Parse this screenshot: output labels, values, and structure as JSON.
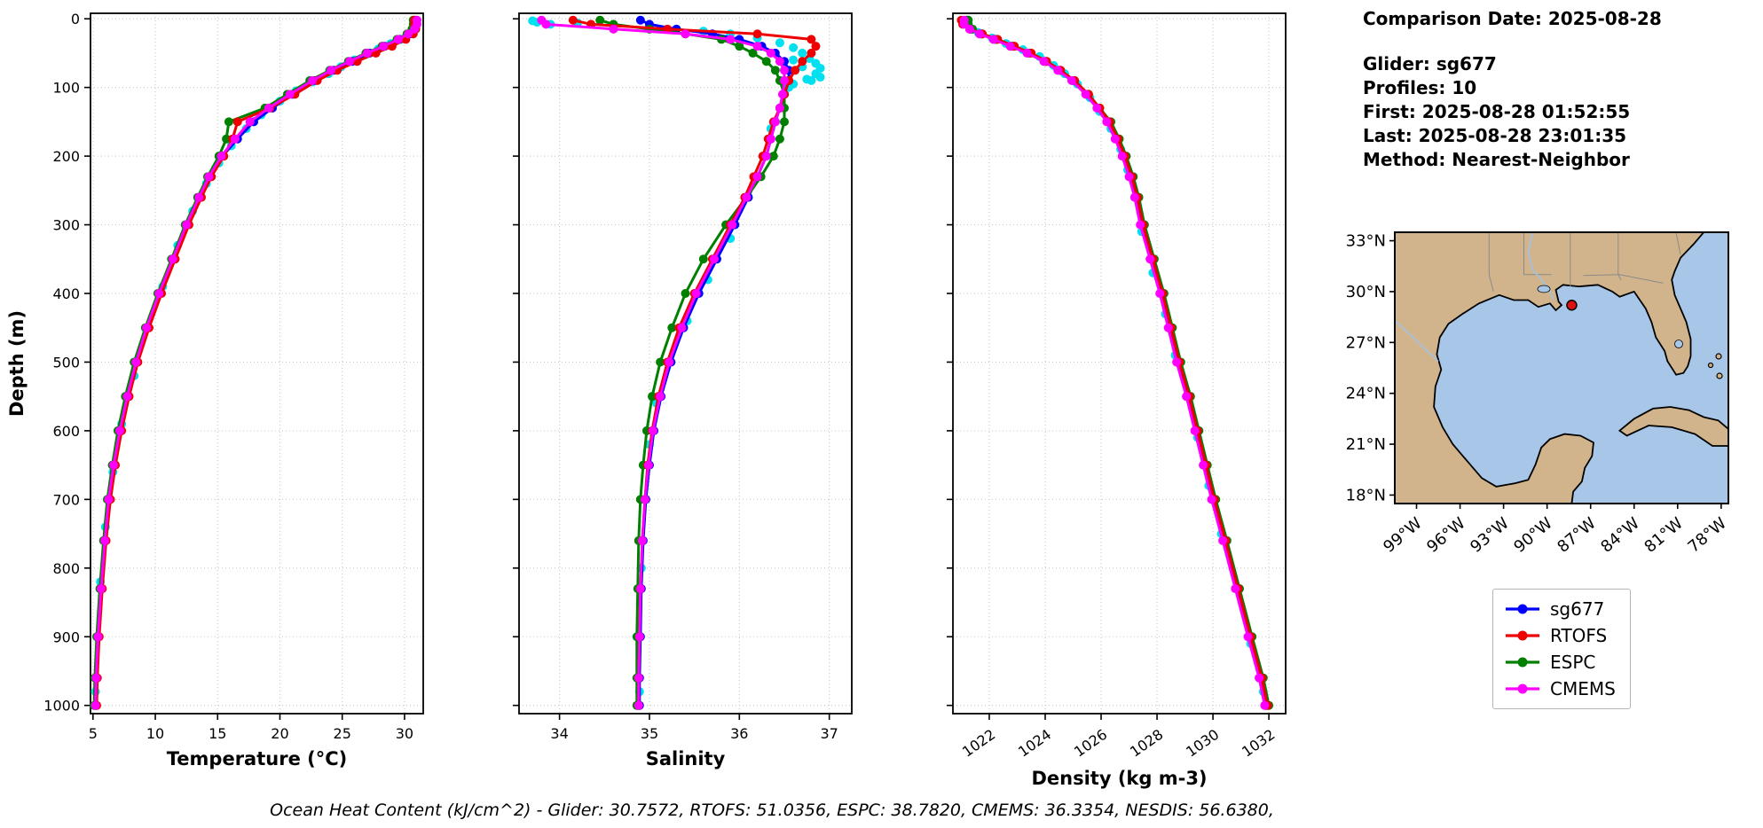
{
  "info_panel": {
    "comparison_date": "Comparison Date: 2025-08-28",
    "glider": "Glider: sg677",
    "profiles": "Profiles: 10",
    "first": "First: 2025-08-28 01:52:55",
    "last": "Last: 2025-08-28 23:01:35",
    "method": "Method: Nearest-Neighbor"
  },
  "caption": "Ocean Heat Content (kJ/cm^2) - Glider: 30.7572,  RTOFS: 51.0356,  ESPC: 38.7820,  CMEMS: 36.3354,  NESDIS: 56.6380,",
  "legend": {
    "entries": [
      {
        "label": "sg677",
        "color": "#0000ff"
      },
      {
        "label": "RTOFS",
        "color": "#ee0000"
      },
      {
        "label": "ESPC",
        "color": "#008000"
      },
      {
        "label": "CMEMS",
        "color": "#ff00ff"
      }
    ]
  },
  "map": {
    "land_color": "#d2b48c",
    "ocean_color": "#a7c6e8",
    "marker": {
      "lon": -88.3,
      "lat": 29.2,
      "color": "#dd1111"
    },
    "lat_labels": [
      "33°N",
      "30°N",
      "27°N",
      "24°N",
      "21°N",
      "18°N"
    ],
    "lat_values": [
      33,
      30,
      27,
      24,
      21,
      18
    ],
    "lon_labels": [
      "99°W",
      "96°W",
      "93°W",
      "90°W",
      "87°W",
      "84°W",
      "81°W",
      "78°W"
    ],
    "lon_values": [
      -99,
      -96,
      -93,
      -90,
      -87,
      -84,
      -81,
      -78
    ]
  },
  "chart_data": [
    {
      "type": "line",
      "xlabel": "Temperature (°C)",
      "ylabel": "Depth (m)",
      "xlim": [
        4.8,
        31.5
      ],
      "ylim": [
        0,
        1000
      ],
      "xticks": [
        5,
        10,
        15,
        20,
        25,
        30
      ],
      "yticks": [
        0,
        100,
        200,
        300,
        400,
        500,
        600,
        700,
        800,
        900,
        1000
      ],
      "grid": true,
      "depths": [
        2,
        8,
        15,
        22,
        30,
        40,
        50,
        62,
        75,
        90,
        110,
        130,
        150,
        175,
        200,
        230,
        260,
        300,
        350,
        400,
        450,
        500,
        550,
        600,
        650,
        700,
        760,
        830,
        900,
        960,
        1000
      ],
      "series": [
        {
          "name": "sg677",
          "color": "#0000ff",
          "values": [
            30.9,
            30.9,
            30.8,
            30.4,
            29.6,
            28.4,
            27.2,
            25.8,
            24.3,
            22.8,
            21.0,
            19.4,
            17.9,
            16.6,
            15.4,
            14.4,
            13.6,
            12.6,
            11.5,
            10.4,
            9.4,
            8.5,
            7.8,
            7.2,
            6.7,
            6.3,
            6.0,
            5.7,
            5.45,
            5.3,
            5.2
          ]
        },
        {
          "name": "RTOFS",
          "color": "#ee0000",
          "values": [
            30.8,
            30.8,
            30.9,
            30.7,
            30.1,
            29.0,
            27.7,
            26.2,
            24.6,
            23.0,
            21.2,
            19.2,
            16.6,
            16.2,
            15.5,
            14.5,
            13.7,
            12.7,
            11.6,
            10.5,
            9.5,
            8.6,
            7.9,
            7.3,
            6.8,
            6.4,
            6.05,
            5.75,
            5.5,
            5.35,
            5.3
          ]
        },
        {
          "name": "ESPC",
          "color": "#008000",
          "values": [
            30.7,
            30.7,
            30.6,
            30.2,
            29.4,
            28.2,
            26.9,
            25.5,
            24.0,
            22.4,
            20.6,
            18.8,
            15.9,
            15.7,
            15.1,
            14.2,
            13.4,
            12.4,
            11.3,
            10.2,
            9.2,
            8.3,
            7.6,
            7.0,
            6.55,
            6.15,
            5.85,
            5.55,
            5.3,
            5.15,
            5.1
          ]
        },
        {
          "name": "CMEMS",
          "color": "#ff00ff",
          "values": [
            31.0,
            31.0,
            30.8,
            30.3,
            29.5,
            28.3,
            27.0,
            25.6,
            24.1,
            22.6,
            20.8,
            19.1,
            17.6,
            16.4,
            15.3,
            14.3,
            13.5,
            12.5,
            11.4,
            10.3,
            9.3,
            8.45,
            7.75,
            7.15,
            6.65,
            6.25,
            5.95,
            5.65,
            5.4,
            5.25,
            5.2
          ]
        }
      ],
      "scatter": {
        "name": "glider-observations",
        "color": "#00e0ee",
        "points": [
          [
            30.9,
            3
          ],
          [
            30.85,
            6
          ],
          [
            30.8,
            10
          ],
          [
            30.75,
            14
          ],
          [
            30.6,
            18
          ],
          [
            30.2,
            24
          ],
          [
            29.7,
            30
          ],
          [
            28.9,
            36
          ],
          [
            27.9,
            44
          ],
          [
            26.9,
            52
          ],
          [
            26.0,
            60
          ],
          [
            24.9,
            70
          ],
          [
            23.9,
            80
          ],
          [
            22.6,
            92
          ],
          [
            21.3,
            105
          ],
          [
            20.0,
            120
          ],
          [
            18.5,
            140
          ],
          [
            17.3,
            160
          ],
          [
            16.1,
            185
          ],
          [
            15.1,
            210
          ],
          [
            14.1,
            240
          ],
          [
            13.0,
            280
          ],
          [
            11.8,
            330
          ],
          [
            10.6,
            390
          ],
          [
            9.4,
            450
          ],
          [
            8.3,
            520
          ],
          [
            7.3,
            590
          ],
          [
            6.6,
            660
          ],
          [
            6.0,
            740
          ],
          [
            5.6,
            820
          ],
          [
            5.35,
            900
          ],
          [
            5.2,
            980
          ]
        ]
      }
    },
    {
      "type": "line",
      "xlabel": "Salinity",
      "ylabel": "",
      "xlim": [
        33.55,
        37.25
      ],
      "ylim": [
        0,
        1000
      ],
      "xticks": [
        34,
        35,
        36,
        37
      ],
      "yticks": [
        0,
        100,
        200,
        300,
        400,
        500,
        600,
        700,
        800,
        900,
        1000
      ],
      "grid": true,
      "depths": [
        2,
        8,
        15,
        22,
        30,
        40,
        50,
        62,
        75,
        90,
        110,
        130,
        150,
        175,
        200,
        230,
        260,
        300,
        350,
        400,
        450,
        500,
        550,
        600,
        650,
        700,
        760,
        830,
        900,
        960,
        1000
      ],
      "series": [
        {
          "name": "sg677",
          "color": "#0000ff",
          "values": [
            34.9,
            35.0,
            35.3,
            35.7,
            36.0,
            36.25,
            36.4,
            36.5,
            36.55,
            36.55,
            36.5,
            36.45,
            36.4,
            36.35,
            36.3,
            36.2,
            36.1,
            35.95,
            35.75,
            35.55,
            35.38,
            35.24,
            35.13,
            35.05,
            35.0,
            34.96,
            34.93,
            34.91,
            34.9,
            34.89,
            34.89
          ]
        },
        {
          "name": "RTOFS",
          "color": "#ee0000",
          "values": [
            34.15,
            34.35,
            35.2,
            36.2,
            36.8,
            36.85,
            36.8,
            36.7,
            36.62,
            36.55,
            36.5,
            36.45,
            36.38,
            36.32,
            36.26,
            36.16,
            36.06,
            35.9,
            35.7,
            35.5,
            35.33,
            35.2,
            35.1,
            35.03,
            34.98,
            34.95,
            34.92,
            34.9,
            34.89,
            34.88,
            34.88
          ]
        },
        {
          "name": "ESPC",
          "color": "#008000",
          "values": [
            34.45,
            34.6,
            35.0,
            35.4,
            35.8,
            36.0,
            36.15,
            36.3,
            36.4,
            36.45,
            36.5,
            36.5,
            36.5,
            36.45,
            36.38,
            36.24,
            36.08,
            35.85,
            35.6,
            35.4,
            35.25,
            35.12,
            35.03,
            34.97,
            34.93,
            34.9,
            34.88,
            34.87,
            34.86,
            34.86,
            34.86
          ]
        },
        {
          "name": "CMEMS",
          "color": "#ff00ff",
          "values": [
            33.8,
            33.85,
            34.6,
            35.4,
            35.9,
            36.2,
            36.35,
            36.45,
            36.5,
            36.5,
            36.48,
            36.45,
            36.4,
            36.35,
            36.3,
            36.2,
            36.08,
            35.92,
            35.72,
            35.52,
            35.36,
            35.22,
            35.12,
            35.04,
            34.99,
            34.95,
            34.92,
            34.9,
            34.89,
            34.88,
            34.88
          ]
        }
      ],
      "scatter": {
        "name": "glider-observations",
        "color": "#00e0ee",
        "points": [
          [
            33.7,
            3
          ],
          [
            33.75,
            5
          ],
          [
            33.9,
            8
          ],
          [
            34.2,
            6
          ],
          [
            34.6,
            10
          ],
          [
            35.0,
            12
          ],
          [
            35.3,
            15
          ],
          [
            35.6,
            18
          ],
          [
            35.9,
            22
          ],
          [
            36.2,
            28
          ],
          [
            36.45,
            35
          ],
          [
            36.6,
            42
          ],
          [
            36.7,
            50
          ],
          [
            36.78,
            58
          ],
          [
            36.85,
            65
          ],
          [
            36.9,
            72
          ],
          [
            36.85,
            80
          ],
          [
            36.75,
            88
          ],
          [
            36.6,
            95
          ],
          [
            36.6,
            60
          ],
          [
            36.7,
            70
          ],
          [
            36.9,
            85
          ],
          [
            36.8,
            90
          ],
          [
            36.55,
            100
          ],
          [
            36.5,
            110
          ],
          [
            36.45,
            130
          ],
          [
            36.35,
            160
          ],
          [
            36.28,
            200
          ],
          [
            36.1,
            260
          ],
          [
            35.9,
            320
          ],
          [
            35.65,
            380
          ],
          [
            35.42,
            440
          ],
          [
            35.22,
            500
          ],
          [
            35.08,
            560
          ],
          [
            35.0,
            620
          ],
          [
            34.95,
            700
          ],
          [
            34.91,
            800
          ],
          [
            34.9,
            900
          ],
          [
            34.89,
            980
          ]
        ]
      }
    },
    {
      "type": "line",
      "xlabel": "Density (kg m-3)",
      "ylabel": "",
      "xlim": [
        1020.7,
        1032.6
      ],
      "ylim": [
        0,
        1000
      ],
      "xticks": [
        1022,
        1024,
        1026,
        1028,
        1030,
        1032
      ],
      "yticks": [
        0,
        100,
        200,
        300,
        400,
        500,
        600,
        700,
        800,
        900,
        1000
      ],
      "grid": true,
      "rotate_xtick_labels": true,
      "depths": [
        2,
        8,
        15,
        22,
        30,
        40,
        50,
        62,
        75,
        90,
        110,
        130,
        150,
        175,
        200,
        230,
        260,
        300,
        350,
        400,
        450,
        500,
        550,
        600,
        650,
        700,
        760,
        830,
        900,
        960,
        1000
      ],
      "series": [
        {
          "name": "sg677",
          "color": "#0000ff",
          "values": [
            1021.2,
            1021.2,
            1021.35,
            1021.7,
            1022.2,
            1022.8,
            1023.4,
            1024.0,
            1024.5,
            1025.0,
            1025.5,
            1025.9,
            1026.25,
            1026.55,
            1026.8,
            1027.05,
            1027.25,
            1027.45,
            1027.8,
            1028.15,
            1028.45,
            1028.75,
            1029.1,
            1029.4,
            1029.7,
            1030.0,
            1030.4,
            1030.85,
            1031.3,
            1031.7,
            1031.9
          ]
        },
        {
          "name": "RTOFS",
          "color": "#ee0000",
          "values": [
            1021.0,
            1021.05,
            1021.3,
            1021.75,
            1022.3,
            1022.9,
            1023.5,
            1024.05,
            1024.55,
            1025.05,
            1025.55,
            1025.95,
            1026.3,
            1026.6,
            1026.85,
            1027.1,
            1027.3,
            1027.5,
            1027.85,
            1028.2,
            1028.5,
            1028.8,
            1029.15,
            1029.45,
            1029.75,
            1030.05,
            1030.45,
            1030.9,
            1031.35,
            1031.75,
            1031.95
          ]
        },
        {
          "name": "ESPC",
          "color": "#008000",
          "values": [
            1021.25,
            1021.25,
            1021.4,
            1021.75,
            1022.25,
            1022.85,
            1023.45,
            1024.05,
            1024.55,
            1025.05,
            1025.55,
            1025.95,
            1026.35,
            1026.65,
            1026.9,
            1027.15,
            1027.35,
            1027.55,
            1027.9,
            1028.25,
            1028.55,
            1028.85,
            1029.2,
            1029.5,
            1029.8,
            1030.1,
            1030.5,
            1030.95,
            1031.4,
            1031.8,
            1032.0
          ]
        },
        {
          "name": "CMEMS",
          "color": "#ff00ff",
          "values": [
            1021.1,
            1021.1,
            1021.3,
            1021.65,
            1022.15,
            1022.75,
            1023.35,
            1023.95,
            1024.45,
            1024.95,
            1025.45,
            1025.85,
            1026.2,
            1026.5,
            1026.75,
            1027.0,
            1027.2,
            1027.4,
            1027.75,
            1028.1,
            1028.4,
            1028.7,
            1029.05,
            1029.35,
            1029.65,
            1029.95,
            1030.35,
            1030.8,
            1031.25,
            1031.65,
            1031.85
          ]
        }
      ],
      "scatter": {
        "name": "glider-observations",
        "color": "#00e0ee",
        "points": [
          [
            1021.15,
            3
          ],
          [
            1021.2,
            8
          ],
          [
            1021.3,
            14
          ],
          [
            1021.6,
            20
          ],
          [
            1022.1,
            28
          ],
          [
            1022.6,
            36
          ],
          [
            1023.2,
            45
          ],
          [
            1023.8,
            55
          ],
          [
            1024.3,
            68
          ],
          [
            1024.7,
            80
          ],
          [
            1025.15,
            95
          ],
          [
            1025.6,
            115
          ],
          [
            1025.95,
            135
          ],
          [
            1026.35,
            160
          ],
          [
            1026.7,
            190
          ],
          [
            1026.95,
            220
          ],
          [
            1027.2,
            260
          ],
          [
            1027.45,
            310
          ],
          [
            1027.85,
            370
          ],
          [
            1028.3,
            430
          ],
          [
            1028.65,
            490
          ],
          [
            1029.05,
            550
          ],
          [
            1029.45,
            610
          ],
          [
            1029.85,
            680
          ],
          [
            1030.3,
            750
          ],
          [
            1030.85,
            830
          ],
          [
            1031.35,
            910
          ],
          [
            1031.8,
            980
          ]
        ]
      }
    }
  ]
}
